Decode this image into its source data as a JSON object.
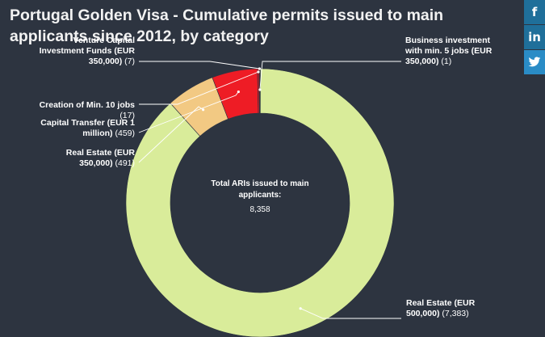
{
  "chart_data": {
    "type": "pie",
    "title": "Portugal Golden Visa - Cumulative permits issued to main applicants since 2012, by category",
    "donut": true,
    "center_label": "Total ARIs issued to main applicants:",
    "center_value": "8,358",
    "slices": [
      {
        "label": "Real Estate (EUR 500,000)",
        "value": 7383,
        "value_text": "(7,383)",
        "color": "#d9ec9a"
      },
      {
        "label": "Real Estate (EUR 350,000)",
        "value": 491,
        "value_text": "(491)",
        "color": "#f2c983"
      },
      {
        "label": "Capital Transfer (EUR 1 million)",
        "value": 459,
        "value_text": "(459)",
        "color": "#ee1c25"
      },
      {
        "label": "Creation of Min. 10 jobs",
        "value": 17,
        "value_text": "(17)",
        "color": "#c81e28"
      },
      {
        "label": "Venture Capital Investment Funds (EUR 350,000)",
        "value": 7,
        "value_text": "(7)",
        "color": "#a01c22"
      },
      {
        "label": "Business investment with min. 5 jobs (EUR 350,000)",
        "value": 1,
        "value_text": "(1)",
        "color": "#3b3b3b"
      }
    ]
  },
  "share": {
    "facebook_icon": "facebook-icon",
    "facebook_glyph": "f",
    "linkedin_icon": "linkedin-icon",
    "linkedin_glyph": "in",
    "twitter_icon": "twitter-icon",
    "twitter_glyph": "🐦"
  }
}
